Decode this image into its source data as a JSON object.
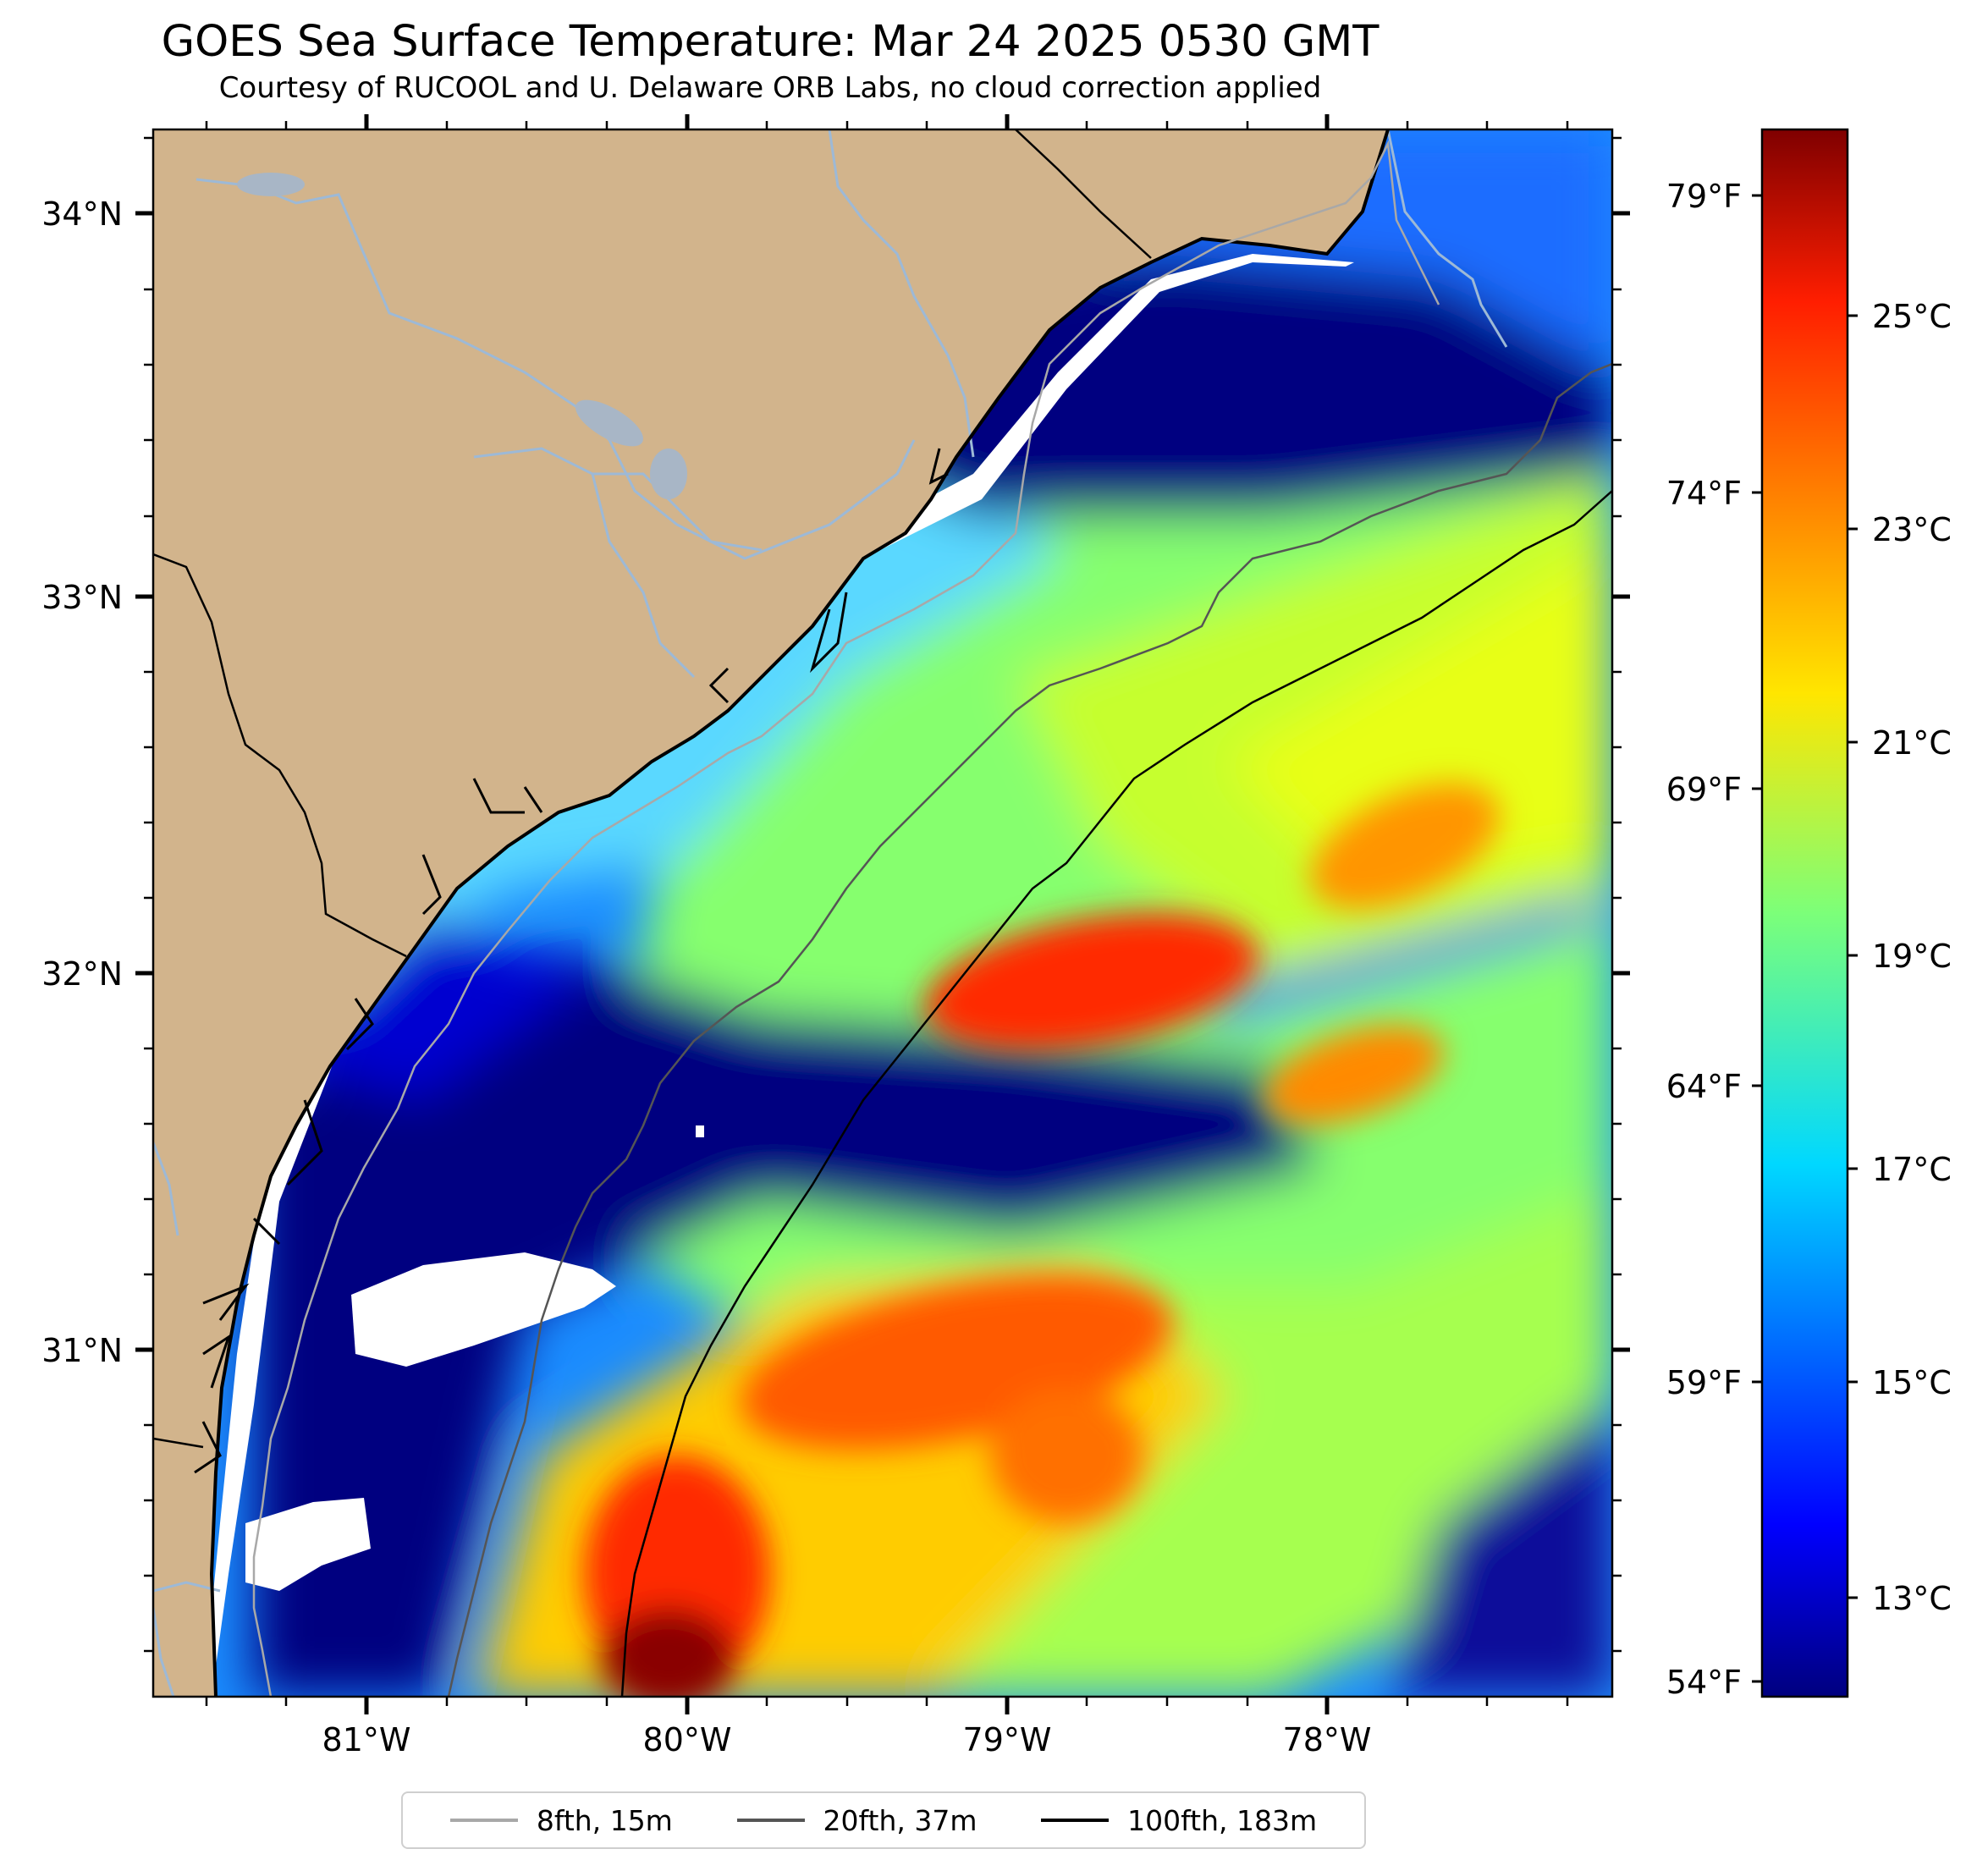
{
  "title": "GOES Sea Surface Temperature: Mar 24 2025 0530 GMT",
  "subtitle": "Courtesy of RUCOOL and U. Delaware ORB Labs, no cloud correction applied",
  "colors": {
    "land": "#d2b48c",
    "no_data": "#ffffff",
    "river": "#9db9d6",
    "coastline": "#000000",
    "isobath_8fth": "#a8a8a8",
    "isobath_20fth": "#555555",
    "isobath_100fth": "#000000"
  },
  "axes": {
    "lat_labels": [
      "34°N",
      "33°N",
      "32°N",
      "31°N"
    ],
    "lon_labels": [
      "81°W",
      "80°W",
      "79°W",
      "78°W"
    ]
  },
  "colorbar": {
    "colormap": "jet",
    "celsius_labels": [
      "25°C",
      "23°C",
      "21°C",
      "19°C",
      "17°C",
      "15°C",
      "13°C"
    ],
    "fahrenheit_labels": [
      "79°F",
      "74°F",
      "69°F",
      "64°F",
      "59°F",
      "54°F"
    ]
  },
  "legend": [
    {
      "label": "8fth, 15m",
      "color": "#a8a8a8"
    },
    {
      "label": "20fth, 37m",
      "color": "#555555"
    },
    {
      "label": "100fth, 183m",
      "color": "#000000"
    }
  ],
  "features": {
    "coastline": "coastline-of-south-carolina-and-georgia",
    "isobaths": [
      "8fth",
      "20fth",
      "100fth"
    ],
    "warm_features": [
      "gulf-stream-filament",
      "warm-eddy"
    ],
    "cold_features": [
      "cold-shelf-water"
    ]
  }
}
